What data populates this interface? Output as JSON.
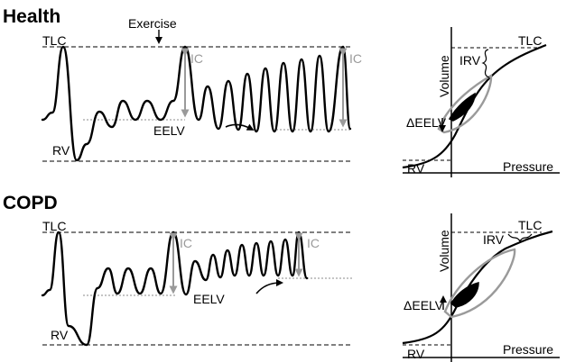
{
  "panels": {
    "health": {
      "title": "Health",
      "exercise_label": "Exercise",
      "tlc_label": "TLC",
      "rv_label": "RV",
      "ic_label": "IC",
      "ic_label_2": "IC",
      "eelv_label": "EELV",
      "loop": {
        "volume_label": "Volume",
        "pressure_label": "Pressure",
        "tlc_label": "TLC",
        "rv_label": "RV",
        "irv_label": "IRV",
        "delta_eelv_label": "ΔEELV",
        "eelv_direction": "down"
      }
    },
    "copd": {
      "title": "COPD",
      "tlc_label": "TLC",
      "rv_label": "RV",
      "ic_label": "IC",
      "ic_label_2": "IC",
      "eelv_label": "EELV",
      "loop": {
        "volume_label": "Volume",
        "pressure_label": "Pressure",
        "tlc_label": "TLC",
        "rv_label": "RV",
        "irv_label": "IRV",
        "delta_eelv_label": "ΔEELV",
        "eelv_direction": "up"
      }
    }
  },
  "colors": {
    "trace": "#000000",
    "annotation_grey": "#9a9a9a",
    "dashed": "#000000"
  }
}
